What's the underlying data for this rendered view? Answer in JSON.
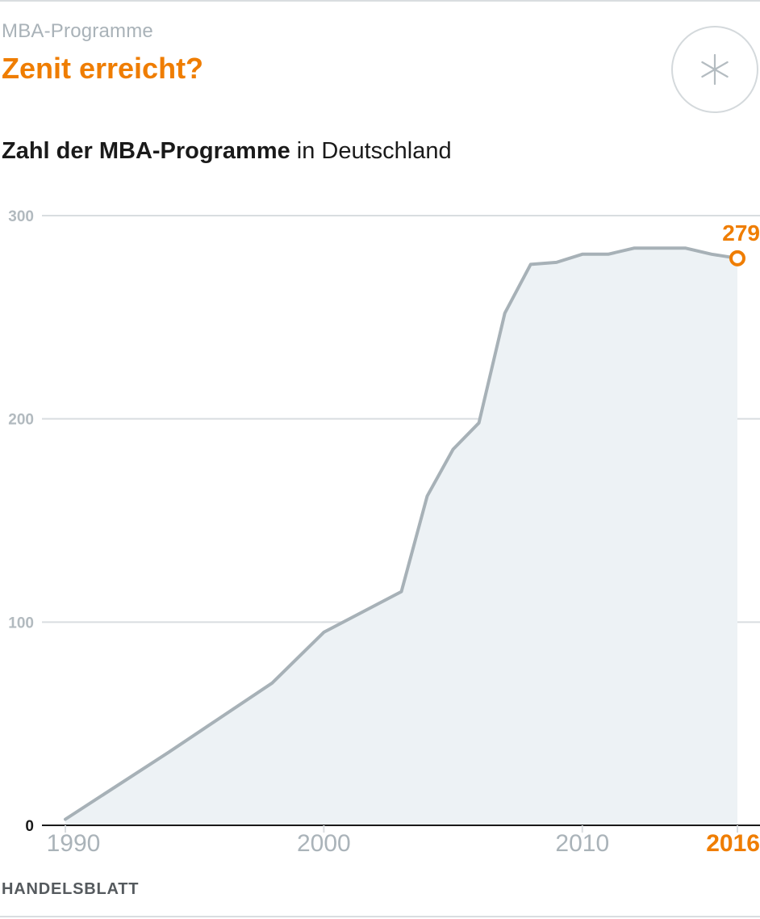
{
  "header": {
    "kicker": "MBA-Programme",
    "headline": "Zenit erreicht?",
    "badge_icon": "asterisk-icon",
    "subtitle_bold": "Zahl der MBA-Programme",
    "subtitle_rest": " in Deutschland"
  },
  "footer": {
    "source": "HANDELSBLATT"
  },
  "colors": {
    "accent": "#ef7d00",
    "line": "#a7b1b7",
    "fill": "#edf2f5",
    "grid": "#d9dde0"
  },
  "chart_data": {
    "type": "area",
    "title": "Zahl der MBA-Programme in Deutschland",
    "xlabel": "",
    "ylabel": "",
    "xlim": [
      1990,
      2016
    ],
    "ylim": [
      0,
      300
    ],
    "grid": true,
    "x_ticks": [
      "1990",
      "2000",
      "2010",
      "2016"
    ],
    "y_ticks": [
      "0",
      "100",
      "200",
      "300"
    ],
    "highlight_x_tick": "2016",
    "x": [
      1990,
      1994,
      1998,
      2000,
      2003,
      2004,
      2005,
      2006,
      2007,
      2008,
      2009,
      2010,
      2011,
      2012,
      2013,
      2014,
      2015,
      2016
    ],
    "values": [
      3,
      36,
      70,
      95,
      115,
      162,
      185,
      198,
      252,
      276,
      277,
      281,
      281,
      284,
      284,
      284,
      281,
      279
    ],
    "annotation": {
      "x": 2016,
      "value": 279,
      "label": "279"
    }
  }
}
